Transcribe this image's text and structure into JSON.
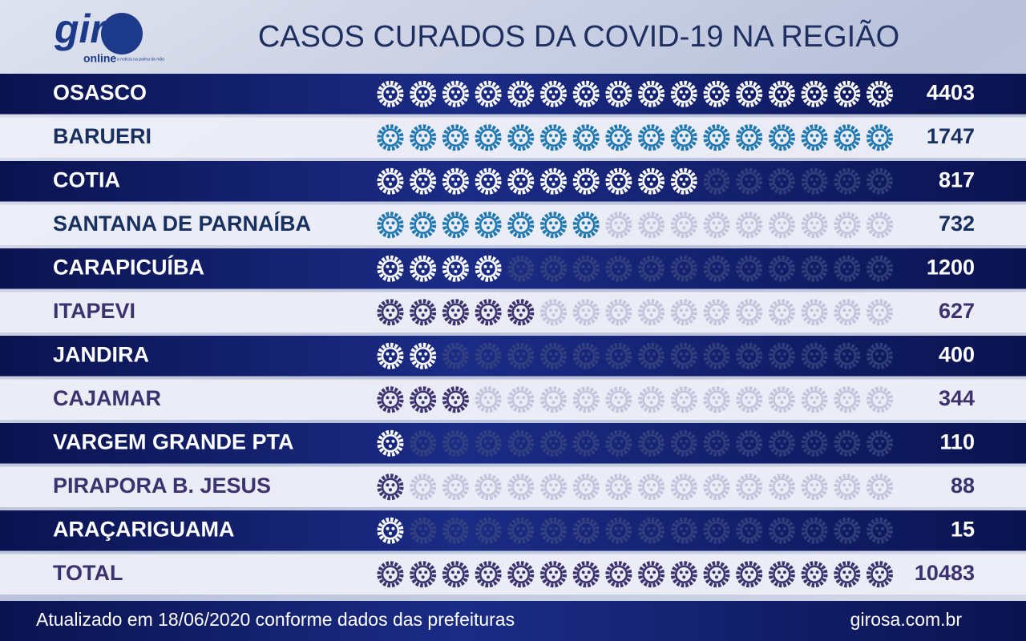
{
  "chart_data": {
    "type": "pictogram",
    "logo": {
      "name": "giro",
      "sub": "online",
      "tagline": "a notícia na palma da mão"
    },
    "title": "CASOS CURADOS DA COVID-19 NA REGIÃO",
    "categories": [
      "OSASCO",
      "BARUERI",
      "COTIA",
      "SANTANA DE PARNAÍBA",
      "CARAPICUÍBA",
      "ITAPEVI",
      "JANDIRA",
      "CAJAMAR",
      "VARGEM GRANDE PTA",
      "PIRAPORA B. JESUS",
      "ARAÇARIGUAMA",
      "TOTAL"
    ],
    "values": [
      4403,
      1747,
      817,
      732,
      1200,
      627,
      400,
      344,
      110,
      88,
      15,
      10483
    ],
    "icons": [
      16,
      16,
      10,
      7,
      4,
      5,
      2,
      3,
      1,
      1,
      1,
      16
    ],
    "icon_slots": 16,
    "icon_colors": [
      "#ffffff",
      "#1f78b0",
      "#ffffff",
      "#1f78b0",
      "#ffffff",
      "#3b3270",
      "#ffffff",
      "#3b3270",
      "#ffffff",
      "#3b3270",
      "#ffffff",
      "#3b3270"
    ],
    "footer": "Atualizado em 18/06/2020 conforme dados das prefeituras",
    "source": "girosa.com.br"
  }
}
